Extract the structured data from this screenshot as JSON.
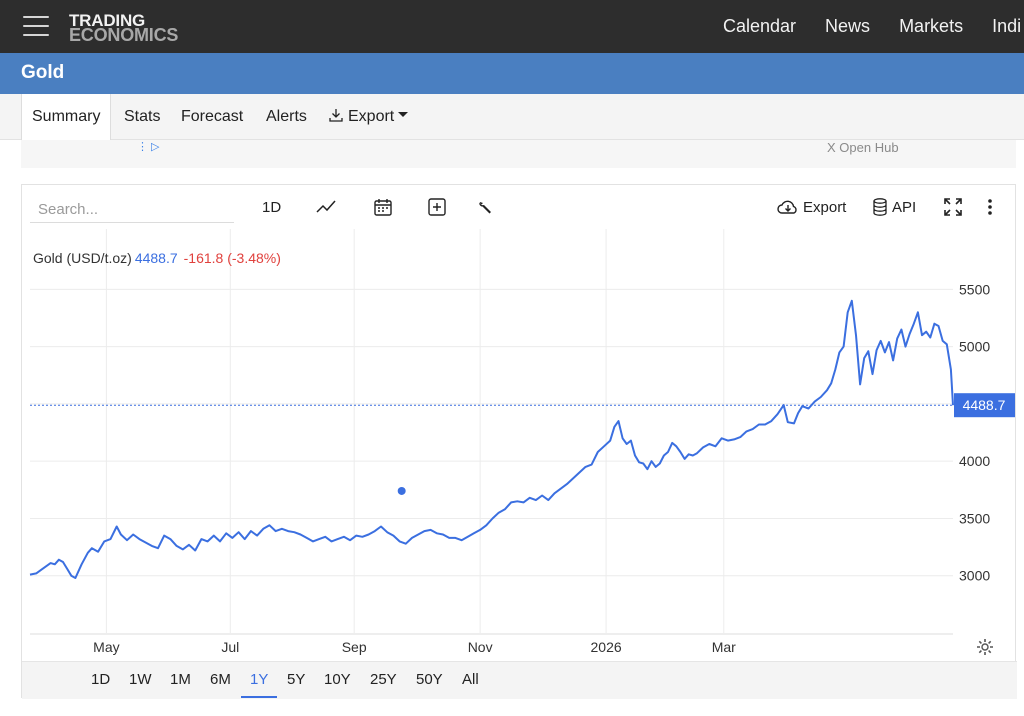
{
  "header": {
    "logo_line1": "TRADING",
    "logo_line2": "ECONOMICS",
    "nav": [
      "Calendar",
      "News",
      "Markets",
      "Indi"
    ]
  },
  "page": {
    "title": "Gold"
  },
  "tabs": {
    "summary": "Summary",
    "stats": "Stats",
    "forecast": "Forecast",
    "alerts": "Alerts",
    "export": "Export",
    "active": "Summary"
  },
  "ad": {
    "text": "X Open Hub"
  },
  "toolbar": {
    "search_placeholder": "Search...",
    "interval": "1D",
    "export_label": "Export",
    "api_label": "API"
  },
  "legend": {
    "name": "Gold (USD/t.oz)",
    "value": "4488.7",
    "change": "-161.8 (-3.48%)"
  },
  "ranges": [
    "1D",
    "1W",
    "1M",
    "6M",
    "1Y",
    "5Y",
    "10Y",
    "25Y",
    "50Y",
    "All"
  ],
  "active_range": "1Y",
  "colors": {
    "line": "#3b6fe0",
    "accent_bar": "#4a7fc1",
    "negative": "#e0413d"
  },
  "chart_data": {
    "type": "line",
    "series": [
      {
        "values": [
          [
            0,
            3010
          ],
          [
            3,
            3020
          ],
          [
            6,
            3060
          ],
          [
            10,
            3110
          ],
          [
            12,
            3100
          ],
          [
            14,
            3140
          ],
          [
            16,
            3120
          ],
          [
            18,
            3060
          ],
          [
            20,
            3000
          ],
          [
            22,
            2980
          ],
          [
            25,
            3100
          ],
          [
            28,
            3200
          ],
          [
            30,
            3240
          ],
          [
            33,
            3210
          ],
          [
            36,
            3300
          ],
          [
            39,
            3320
          ],
          [
            42,
            3430
          ],
          [
            44,
            3360
          ],
          [
            47,
            3310
          ],
          [
            50,
            3360
          ],
          [
            53,
            3320
          ],
          [
            56,
            3290
          ],
          [
            59,
            3260
          ],
          [
            62,
            3240
          ],
          [
            65,
            3350
          ],
          [
            68,
            3320
          ],
          [
            71,
            3260
          ],
          [
            74,
            3230
          ],
          [
            77,
            3270
          ],
          [
            80,
            3220
          ],
          [
            83,
            3320
          ],
          [
            86,
            3300
          ],
          [
            89,
            3350
          ],
          [
            92,
            3300
          ],
          [
            95,
            3370
          ],
          [
            98,
            3330
          ],
          [
            101,
            3380
          ],
          [
            104,
            3320
          ],
          [
            107,
            3390
          ],
          [
            110,
            3350
          ],
          [
            113,
            3410
          ],
          [
            116,
            3440
          ],
          [
            119,
            3390
          ],
          [
            122,
            3410
          ],
          [
            125,
            3390
          ],
          [
            128,
            3380
          ],
          [
            131,
            3360
          ],
          [
            134,
            3330
          ],
          [
            137,
            3300
          ],
          [
            140,
            3320
          ],
          [
            143,
            3340
          ],
          [
            146,
            3300
          ],
          [
            149,
            3320
          ],
          [
            152,
            3340
          ],
          [
            155,
            3310
          ],
          [
            158,
            3350
          ],
          [
            161,
            3340
          ],
          [
            164,
            3360
          ],
          [
            167,
            3390
          ],
          [
            170,
            3430
          ],
          [
            173,
            3380
          ],
          [
            176,
            3350
          ],
          [
            179,
            3300
          ],
          [
            182,
            3280
          ],
          [
            185,
            3330
          ],
          [
            188,
            3360
          ],
          [
            191,
            3390
          ],
          [
            194,
            3400
          ],
          [
            197,
            3370
          ],
          [
            200,
            3360
          ],
          [
            203,
            3330
          ],
          [
            206,
            3330
          ],
          [
            209,
            3310
          ],
          [
            212,
            3340
          ],
          [
            215,
            3370
          ],
          [
            218,
            3400
          ],
          [
            221,
            3440
          ],
          [
            224,
            3500
          ],
          [
            227,
            3550
          ],
          [
            230,
            3580
          ],
          [
            233,
            3640
          ],
          [
            236,
            3650
          ],
          [
            239,
            3640
          ],
          [
            242,
            3680
          ],
          [
            245,
            3660
          ],
          [
            248,
            3700
          ],
          [
            251,
            3660
          ],
          [
            254,
            3720
          ],
          [
            257,
            3760
          ],
          [
            260,
            3800
          ],
          [
            263,
            3850
          ],
          [
            266,
            3900
          ],
          [
            269,
            3950
          ],
          [
            272,
            3970
          ],
          [
            275,
            4080
          ],
          [
            278,
            4130
          ],
          [
            281,
            4180
          ],
          [
            283,
            4300
          ],
          [
            285,
            4350
          ],
          [
            287,
            4200
          ],
          [
            289,
            4150
          ],
          [
            291,
            4180
          ],
          [
            293,
            4050
          ],
          [
            295,
            3990
          ],
          [
            297,
            3980
          ],
          [
            299,
            3930
          ],
          [
            301,
            4000
          ],
          [
            303,
            3950
          ],
          [
            305,
            3980
          ],
          [
            307,
            4050
          ],
          [
            309,
            4080
          ],
          [
            311,
            4160
          ],
          [
            313,
            4130
          ],
          [
            315,
            4080
          ],
          [
            317,
            4020
          ],
          [
            319,
            4060
          ],
          [
            321,
            4050
          ],
          [
            323,
            4070
          ],
          [
            326,
            4120
          ],
          [
            329,
            4150
          ],
          [
            332,
            4130
          ],
          [
            335,
            4200
          ],
          [
            338,
            4180
          ],
          [
            341,
            4190
          ],
          [
            344,
            4210
          ],
          [
            347,
            4260
          ],
          [
            350,
            4280
          ],
          [
            353,
            4320
          ],
          [
            356,
            4320
          ],
          [
            359,
            4350
          ],
          [
            362,
            4410
          ],
          [
            365,
            4490
          ],
          [
            367,
            4340
          ],
          [
            370,
            4330
          ],
          [
            372,
            4420
          ],
          [
            374,
            4480
          ],
          [
            377,
            4460
          ],
          [
            380,
            4520
          ],
          [
            383,
            4560
          ],
          [
            386,
            4620
          ],
          [
            388,
            4680
          ],
          [
            390,
            4800
          ],
          [
            392,
            4950
          ],
          [
            394,
            5000
          ],
          [
            396,
            5300
          ],
          [
            398,
            5400
          ],
          [
            400,
            5100
          ],
          [
            402,
            4670
          ],
          [
            404,
            4900
          ],
          [
            406,
            4960
          ],
          [
            408,
            4760
          ],
          [
            410,
            4970
          ],
          [
            412,
            5050
          ],
          [
            414,
            4950
          ],
          [
            416,
            5040
          ],
          [
            418,
            4880
          ],
          [
            420,
            5070
          ],
          [
            422,
            5150
          ],
          [
            424,
            5000
          ],
          [
            426,
            5110
          ],
          [
            428,
            5200
          ],
          [
            430,
            5300
          ],
          [
            432,
            5100
          ],
          [
            434,
            5130
          ],
          [
            436,
            5080
          ],
          [
            438,
            5200
          ],
          [
            440,
            5180
          ],
          [
            442,
            5050
          ],
          [
            444,
            5020
          ],
          [
            446,
            4800
          ],
          [
            447,
            4488.7
          ]
        ]
      }
    ],
    "x_ticks": [
      {
        "label": "May",
        "x": 37
      },
      {
        "label": "Jul",
        "x": 97
      },
      {
        "label": "Sep",
        "x": 157
      },
      {
        "label": "Nov",
        "x": 218
      },
      {
        "label": "2026",
        "x": 279
      },
      {
        "label": "Mar",
        "x": 336
      }
    ],
    "x_units": "days",
    "ylim": [
      2500,
      5800
    ],
    "y_ticks": [
      3000,
      3500,
      4000,
      4500,
      5000,
      5500
    ],
    "y_tick_labels": [
      "3000",
      "3500",
      "4000",
      "5000",
      "5500"
    ],
    "last_value": 4488.7,
    "last_value_label": "4488.7",
    "marker": {
      "x": 180,
      "y": 3740
    },
    "grid": true
  }
}
